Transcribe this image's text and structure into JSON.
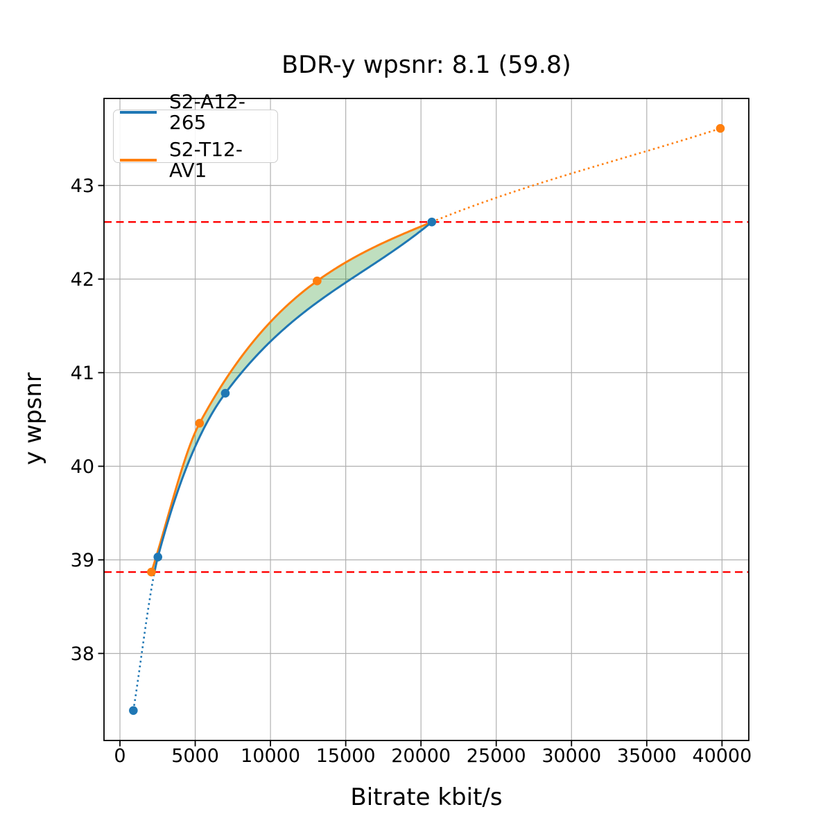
{
  "chart": {
    "title": "BDR-y wpsnr: 8.1 (59.8)",
    "xlabel": "Bitrate kbit/s",
    "ylabel": "y wpsnr"
  },
  "chart_data": {
    "type": "line",
    "title": "BDR-y wpsnr: 8.1 (59.8)",
    "xlabel": "Bitrate kbit/s",
    "ylabel": "y wpsnr",
    "xlim": [
      -1060,
      41780
    ],
    "ylim": [
      37.07,
      43.93
    ],
    "x_ticks": [
      0,
      5000,
      10000,
      15000,
      20000,
      25000,
      30000,
      35000,
      40000
    ],
    "y_ticks": [
      38,
      39,
      40,
      41,
      42,
      43
    ],
    "grid": true,
    "grid_color": "#b0b0b0",
    "legend_position": "upper left",
    "series": [
      {
        "name": "S2-A12-265",
        "color": "#1f77b4",
        "points": [
          [
            890,
            37.39
          ],
          [
            2520,
            39.03
          ],
          [
            7000,
            40.78
          ],
          [
            20720,
            42.61
          ]
        ],
        "dotted_extrapolation": "below-overlap"
      },
      {
        "name": "S2-T12-AV1",
        "color": "#ff7f0e",
        "points": [
          [
            2090,
            38.87
          ],
          [
            5290,
            40.46
          ],
          [
            13100,
            41.98
          ],
          [
            39890,
            43.61
          ]
        ],
        "dotted_extrapolation": "above-overlap"
      }
    ],
    "merge_point": [
      20720,
      42.61
    ],
    "overlap_quality_range": [
      38.87,
      42.61
    ],
    "ref_lines": {
      "color": "#ff0000",
      "style": "dashed",
      "y_values": [
        38.87,
        42.61
      ]
    },
    "fill_between": {
      "color": "#008000",
      "opacity": 0.25
    }
  }
}
